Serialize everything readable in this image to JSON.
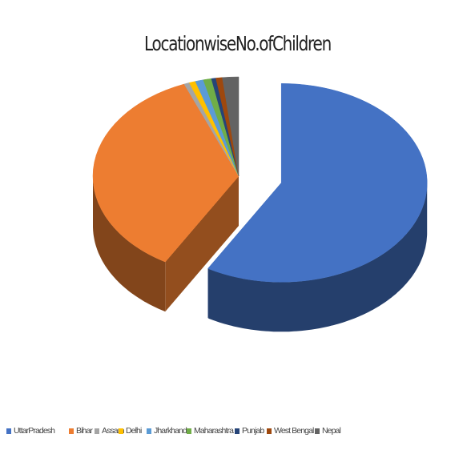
{
  "chart_data": {
    "type": "pie",
    "title": "LocationwiseNo.ofChildren",
    "categories": [
      "UttarPradesh",
      "Bihar",
      "Assam",
      "Delhi",
      "Jharkhand",
      "Maharashtra",
      "Punjab",
      "West Bengal",
      "Nepal"
    ],
    "values": [
      58.4,
      35.5,
      0.6,
      0.7,
      0.9,
      0.9,
      0.5,
      0.7,
      1.8
    ],
    "colors": [
      "#4472c4",
      "#ed7d31",
      "#a5a5a5",
      "#ffc000",
      "#5b9bd5",
      "#70ad47",
      "#264478",
      "#9e480e",
      "#636363"
    ],
    "legend_position": "bottom",
    "exploded_slice": "UttarPradesh",
    "effect": "3d"
  }
}
